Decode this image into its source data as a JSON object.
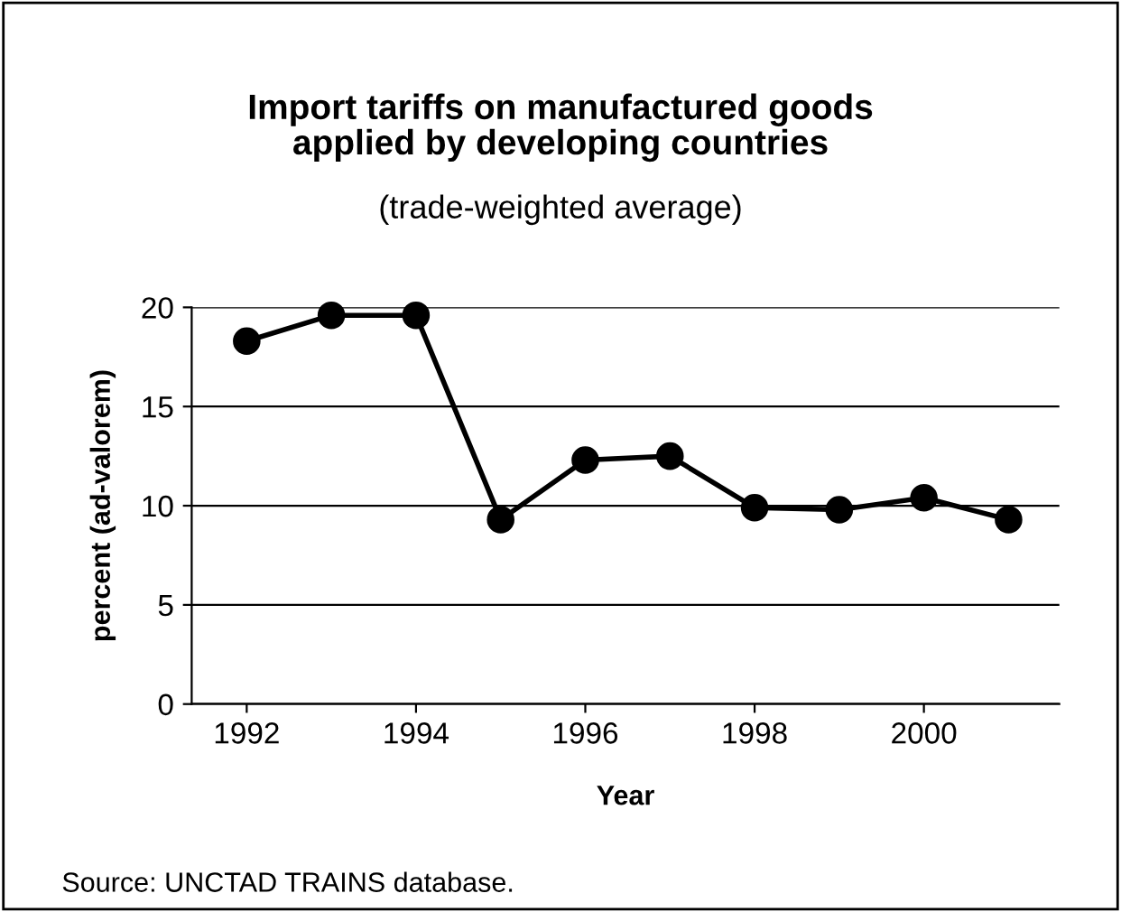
{
  "chart_data": {
    "type": "line",
    "title": "Import tariffs on manufactured goods\napplied by developing countries",
    "subtitle": "(trade-weighted average)",
    "xlabel": "Year",
    "ylabel": "percent (ad-valorem)",
    "x": [
      1992,
      1993,
      1994,
      1995,
      1996,
      1997,
      1998,
      1999,
      2000,
      2001
    ],
    "series": [
      {
        "color": "#000000",
        "values": [
          18.3,
          19.6,
          19.6,
          9.3,
          12.3,
          12.5,
          9.9,
          9.8,
          10.4,
          9.3
        ]
      }
    ],
    "xlim": [
      1991.35,
      2001.6
    ],
    "xticks": [
      1992,
      1994,
      1996,
      1998,
      2000
    ],
    "ylim": [
      0,
      20
    ],
    "yticks": [
      0,
      5,
      10,
      15,
      20
    ],
    "grid": "y",
    "marker": "circle",
    "line_style": "solid",
    "legend": false,
    "annotations": [
      "Source: UNCTAD TRAINS database."
    ]
  }
}
